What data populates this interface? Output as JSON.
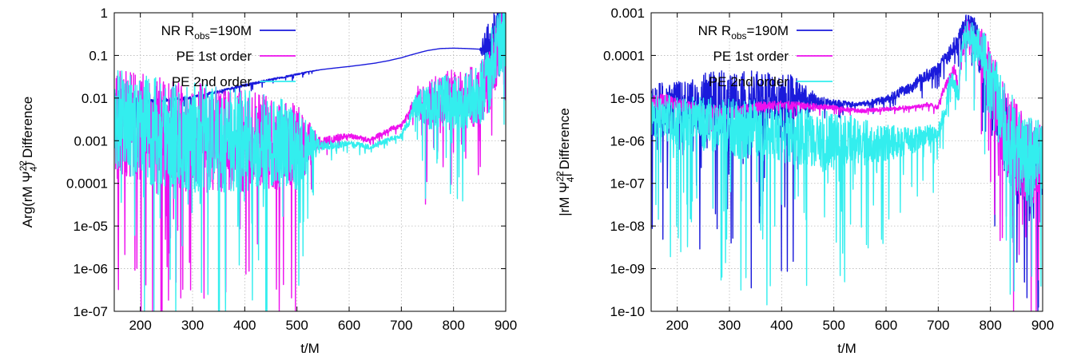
{
  "chart_data": [
    {
      "type": "line",
      "panel": "left",
      "xlabel": "t/M",
      "ylabel_prefix": "Arg(rM Ψ",
      "ylabel_sup": "22",
      "ylabel_sub": "4",
      "ylabel_suffix": ")  Difference",
      "xlim": [
        150,
        900
      ],
      "ylim": [
        1e-07,
        1
      ],
      "yscale": "log",
      "grid": true,
      "legend_position": "top-left",
      "x_ticks": [
        200,
        300,
        400,
        500,
        600,
        700,
        800,
        900
      ],
      "x_tick_labels": [
        "200",
        "300",
        "400",
        "500",
        "600",
        "700",
        "800",
        "900"
      ],
      "y_ticks": [
        1e-07,
        1e-06,
        1e-05,
        0.0001,
        0.001,
        0.01,
        0.1,
        1
      ],
      "y_tick_labels": [
        "1e-07",
        "1e-06",
        "1e-05",
        "0.0001",
        "0.001",
        "0.01",
        "0.1",
        "1"
      ],
      "series": [
        {
          "name_main": "NR R",
          "name_sub": "obs",
          "name_rest": "=190M",
          "color": "#1a1adb",
          "points": [
            [
              150,
              0.012
            ],
            [
              175,
              0.008
            ],
            [
              200,
              0.0075
            ],
            [
              225,
              0.0085
            ],
            [
              250,
              0.009
            ],
            [
              275,
              0.0095
            ],
            [
              300,
              0.0105
            ],
            [
              325,
              0.0125
            ],
            [
              350,
              0.014
            ],
            [
              375,
              0.017
            ],
            [
              400,
              0.02
            ],
            [
              425,
              0.023
            ],
            [
              450,
              0.027
            ],
            [
              475,
              0.031
            ],
            [
              500,
              0.036
            ],
            [
              525,
              0.042
            ],
            [
              550,
              0.047
            ],
            [
              575,
              0.051
            ],
            [
              600,
              0.055
            ],
            [
              625,
              0.06
            ],
            [
              650,
              0.066
            ],
            [
              675,
              0.075
            ],
            [
              700,
              0.088
            ],
            [
              725,
              0.108
            ],
            [
              750,
              0.13
            ],
            [
              775,
              0.145
            ],
            [
              800,
              0.148
            ],
            [
              825,
              0.145
            ],
            [
              850,
              0.14
            ],
            [
              860,
              0.12
            ],
            [
              875,
              0.2
            ],
            [
              890,
              0.5
            ],
            [
              900,
              0.3
            ]
          ],
          "noise": [
            [
              150,
              0.02,
              0.15
            ],
            [
              170,
              0.3,
              0.8
            ],
            [
              200,
              0.05,
              0.4
            ],
            [
              250,
              0.04,
              0.2
            ],
            [
              300,
              0.03,
              0.15
            ],
            [
              400,
              0.03,
              0.12
            ],
            [
              500,
              0.02,
              0.08
            ],
            [
              550,
              0,
              0
            ],
            [
              850,
              0,
              0
            ],
            [
              860,
              0.5,
              1.5
            ],
            [
              900,
              0.8,
              1.5
            ]
          ]
        },
        {
          "name": "PE 1st order",
          "color": "#ee11ee",
          "points": [
            [
              150,
              0.003
            ],
            [
              200,
              0.002
            ],
            [
              250,
              0.0015
            ],
            [
              300,
              0.0012
            ],
            [
              350,
              0.0011
            ],
            [
              400,
              0.001
            ],
            [
              450,
              0.0009
            ],
            [
              500,
              0.0007
            ],
            [
              550,
              0.0009
            ],
            [
              580,
              0.0012
            ],
            [
              600,
              0.0013
            ],
            [
              620,
              0.0012
            ],
            [
              640,
              0.001
            ],
            [
              660,
              0.0014
            ],
            [
              680,
              0.0019
            ],
            [
              700,
              0.0023
            ],
            [
              715,
              0.004
            ],
            [
              730,
              0.01
            ],
            [
              740,
              0.006
            ],
            [
              760,
              0.009
            ],
            [
              790,
              0.011
            ],
            [
              820,
              0.01
            ],
            [
              850,
              0.012
            ],
            [
              870,
              0.03
            ],
            [
              890,
              0.2
            ],
            [
              900,
              0.3
            ]
          ],
          "noise": [
            [
              150,
              1.2,
              2.5
            ],
            [
              200,
              1.3,
              3.0
            ],
            [
              300,
              1.3,
              3.0
            ],
            [
              400,
              1.2,
              3.0
            ],
            [
              500,
              1.0,
              2.5
            ],
            [
              545,
              0.12,
              0.3
            ],
            [
              600,
              0.06,
              0.15
            ],
            [
              700,
              0.05,
              0.1
            ],
            [
              720,
              0.15,
              0.3
            ],
            [
              740,
              0.5,
              1.2
            ],
            [
              870,
              0.8,
              1.5
            ],
            [
              900,
              1.0,
              1.5
            ]
          ]
        },
        {
          "name": "PE 2nd order",
          "color": "#33eeee",
          "points": [
            [
              150,
              0.003
            ],
            [
              200,
              0.002
            ],
            [
              250,
              0.0015
            ],
            [
              300,
              0.0012
            ],
            [
              350,
              0.0011
            ],
            [
              400,
              0.001
            ],
            [
              450,
              0.0009
            ],
            [
              500,
              0.0007
            ],
            [
              550,
              0.0008
            ],
            [
              580,
              0.0008
            ],
            [
              600,
              0.0009
            ],
            [
              620,
              0.0008
            ],
            [
              640,
              0.0007
            ],
            [
              660,
              0.0009
            ],
            [
              680,
              0.0011
            ],
            [
              700,
              0.0013
            ],
            [
              715,
              0.003
            ],
            [
              730,
              0.008
            ],
            [
              740,
              0.005
            ],
            [
              760,
              0.007
            ],
            [
              790,
              0.009
            ],
            [
              820,
              0.008
            ],
            [
              850,
              0.01
            ],
            [
              870,
              0.03
            ],
            [
              890,
              0.3
            ],
            [
              900,
              0.4
            ]
          ],
          "noise": [
            [
              150,
              1.2,
              2.5
            ],
            [
              200,
              1.3,
              3.0
            ],
            [
              300,
              1.3,
              3.0
            ],
            [
              400,
              1.2,
              3.0
            ],
            [
              500,
              1.0,
              2.5
            ],
            [
              545,
              0.12,
              0.3
            ],
            [
              600,
              0.06,
              0.15
            ],
            [
              700,
              0.05,
              0.1
            ],
            [
              720,
              0.15,
              0.3
            ],
            [
              740,
              0.5,
              1.2
            ],
            [
              870,
              0.8,
              1.5
            ],
            [
              900,
              1.0,
              1.5
            ]
          ]
        }
      ]
    },
    {
      "type": "line",
      "panel": "right",
      "xlabel": "t/M",
      "ylabel_prefix": "|rM Ψ",
      "ylabel_sup": "22",
      "ylabel_sub": "4",
      "ylabel_suffix": "|  Difference",
      "xlim": [
        150,
        900
      ],
      "ylim": [
        1e-10,
        0.001
      ],
      "yscale": "log",
      "grid": true,
      "legend_position": "top-left",
      "x_ticks": [
        200,
        300,
        400,
        500,
        600,
        700,
        800,
        900
      ],
      "x_tick_labels": [
        "200",
        "300",
        "400",
        "500",
        "600",
        "700",
        "800",
        "900"
      ],
      "y_ticks": [
        1e-10,
        1e-09,
        1e-08,
        1e-07,
        1e-06,
        1e-05,
        0.0001,
        0.001
      ],
      "y_tick_labels": [
        "1e-10",
        "1e-09",
        "1e-08",
        "1e-07",
        "1e-06",
        "1e-05",
        "0.0001",
        "0.001"
      ],
      "series": [
        {
          "name_main": "NR R",
          "name_sub": "obs",
          "name_rest": "=190M",
          "color": "#1a1adb",
          "points": [
            [
              150,
              5e-06
            ],
            [
              200,
              6e-06
            ],
            [
              250,
              7e-06
            ],
            [
              300,
              8e-06
            ],
            [
              350,
              8.5e-06
            ],
            [
              400,
              9e-06
            ],
            [
              450,
              8.5e-06
            ],
            [
              500,
              7.5e-06
            ],
            [
              550,
              7e-06
            ],
            [
              600,
              9e-06
            ],
            [
              650,
              1.8e-05
            ],
            [
              700,
              4.5e-05
            ],
            [
              720,
              0.0001
            ],
            [
              740,
              0.00025
            ],
            [
              755,
              0.0005
            ],
            [
              765,
              0.0004
            ],
            [
              780,
              7e-05
            ],
            [
              800,
              1e-05
            ],
            [
              820,
              2e-06
            ],
            [
              840,
              5e-07
            ],
            [
              860,
              2e-07
            ],
            [
              880,
              1e-07
            ],
            [
              900,
              2e-07
            ]
          ],
          "noise": [
            [
              150,
              0.6,
              2.5
            ],
            [
              300,
              0.8,
              2.5
            ],
            [
              420,
              0.6,
              2.5
            ],
            [
              470,
              0.15,
              0.4
            ],
            [
              540,
              0.05,
              0.1
            ],
            [
              740,
              0.2,
              0.4
            ],
            [
              770,
              0.4,
              0.8
            ],
            [
              840,
              1.0,
              2.0
            ],
            [
              900,
              1.0,
              2.0
            ]
          ]
        },
        {
          "name": "PE 1st order",
          "color": "#ee11ee",
          "points": [
            [
              150,
              8e-06
            ],
            [
              175,
              9e-06
            ],
            [
              200,
              7e-06
            ],
            [
              250,
              5e-06
            ],
            [
              300,
              4.5e-06
            ],
            [
              350,
              6e-06
            ],
            [
              400,
              7e-06
            ],
            [
              450,
              6.5e-06
            ],
            [
              500,
              6e-06
            ],
            [
              550,
              5e-06
            ],
            [
              600,
              5.5e-06
            ],
            [
              650,
              6e-06
            ],
            [
              680,
              7e-06
            ],
            [
              700,
              6e-06
            ],
            [
              720,
              2.5e-05
            ],
            [
              730,
              4.5e-05
            ],
            [
              740,
              1e-05
            ],
            [
              755,
              0.00035
            ],
            [
              770,
              0.0002
            ],
            [
              800,
              2e-05
            ],
            [
              820,
              3e-06
            ],
            [
              840,
              8e-07
            ],
            [
              860,
              4e-07
            ],
            [
              880,
              3e-07
            ],
            [
              900,
              4e-07
            ]
          ],
          "noise": [
            [
              150,
              0.15,
              0.3
            ],
            [
              300,
              0.15,
              0.3
            ],
            [
              500,
              0.05,
              0.1
            ],
            [
              700,
              0.05,
              0.1
            ],
            [
              740,
              0.2,
              0.4
            ],
            [
              770,
              0.4,
              0.9
            ],
            [
              840,
              1.2,
              2.5
            ],
            [
              900,
              1.0,
              2.0
            ]
          ]
        },
        {
          "name": "PE 2nd order",
          "color": "#33eeee",
          "points": [
            [
              150,
              4e-06
            ],
            [
              200,
              3e-06
            ],
            [
              300,
              2e-06
            ],
            [
              400,
              1.5e-06
            ],
            [
              500,
              1e-06
            ],
            [
              600,
              9e-07
            ],
            [
              650,
              1e-06
            ],
            [
              700,
              1.5e-06
            ],
            [
              715,
              5e-06
            ],
            [
              725,
              3e-05
            ],
            [
              740,
              1e-05
            ],
            [
              755,
              0.00035
            ],
            [
              770,
              0.0002
            ],
            [
              800,
              2e-05
            ],
            [
              820,
              3e-06
            ],
            [
              840,
              8e-07
            ],
            [
              860,
              4e-07
            ],
            [
              880,
              3e-07
            ],
            [
              900,
              4e-07
            ]
          ],
          "noise": [
            [
              150,
              0.5,
              2.0
            ],
            [
              300,
              0.7,
              2.5
            ],
            [
              500,
              0.7,
              2.5
            ],
            [
              650,
              0.3,
              1.2
            ],
            [
              710,
              0.2,
              0.5
            ],
            [
              740,
              0.2,
              0.4
            ],
            [
              770,
              0.4,
              0.9
            ],
            [
              840,
              1.2,
              2.5
            ],
            [
              900,
              1.0,
              2.0
            ]
          ]
        }
      ]
    }
  ]
}
